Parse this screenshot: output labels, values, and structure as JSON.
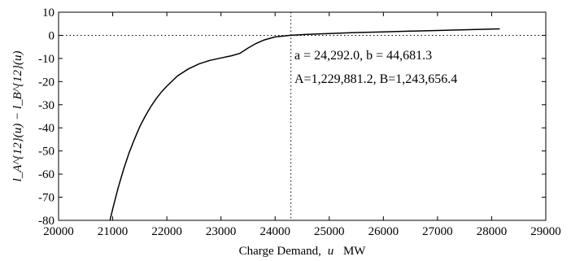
{
  "chart_data": {
    "type": "line",
    "xlabel_main": "Charge Demand,",
    "xlabel_var": "u",
    "xlabel_unit": "MW",
    "ylabel": "l_A^{12}(u) − l_B^{12}(u)",
    "xlim": [
      20000,
      29000
    ],
    "ylim": [
      -80,
      10
    ],
    "xticks": [
      20000,
      21000,
      22000,
      23000,
      24000,
      25000,
      26000,
      27000,
      28000,
      29000
    ],
    "yticks": [
      10,
      0,
      -10,
      -20,
      -30,
      -40,
      -50,
      -60,
      -70,
      -80
    ],
    "series": [
      {
        "x": [
          20950,
          21000,
          21100,
          21200,
          21300,
          21400,
          21500,
          21600,
          21700,
          21800,
          21900,
          22000,
          22200,
          22400,
          22600,
          22800,
          23000,
          23200,
          23350,
          23500,
          23650,
          23800,
          24000,
          24292,
          24600,
          25000,
          25500,
          26000,
          26500,
          27000,
          27500,
          28000,
          28150
        ],
        "y": [
          -80,
          -75,
          -66,
          -58,
          -51,
          -45,
          -39.5,
          -35,
          -31,
          -27.5,
          -24.5,
          -22,
          -17.5,
          -14.5,
          -12.3,
          -10.8,
          -9.8,
          -8.8,
          -7.8,
          -5.5,
          -3.5,
          -2,
          -0.7,
          0,
          0.4,
          0.8,
          1.2,
          1.5,
          1.8,
          2.1,
          2.4,
          2.7,
          2.8
        ]
      }
    ],
    "hline_y": 0,
    "vline_x": 24292,
    "annotations": [
      "a = 24,292.0, b = 44,681.3",
      "A=1,229,881.2,  B=1,243,656.4"
    ]
  }
}
